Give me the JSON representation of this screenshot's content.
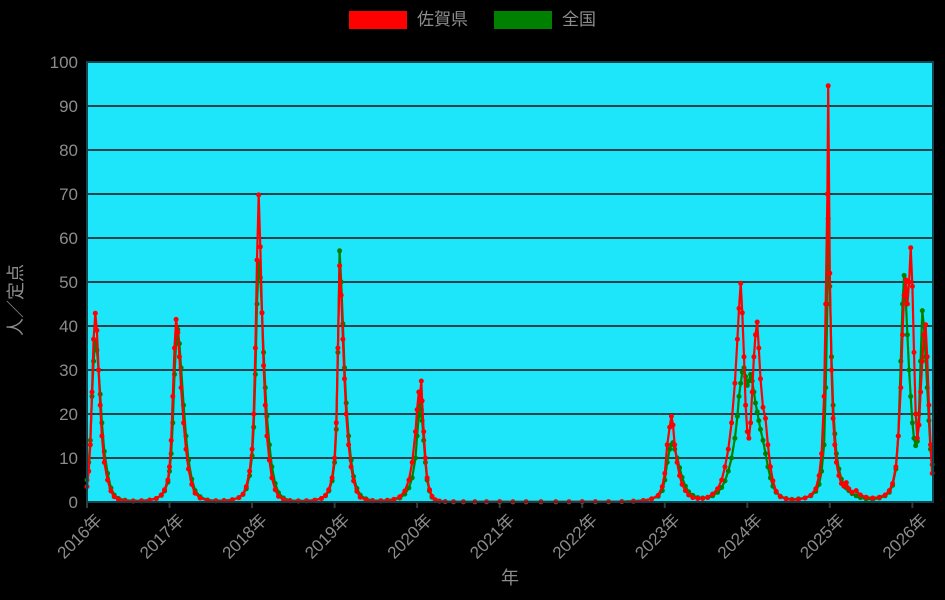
{
  "figure": {
    "background": "#000000",
    "plot_background": "#1ee6fa",
    "grid_color": "#11444c",
    "text_color": "#8c8c8c"
  },
  "legend": {
    "items": [
      {
        "label": "佐賀県",
        "color": "#ff0000"
      },
      {
        "label": "全国",
        "color": "#008000"
      }
    ]
  },
  "chart_data": {
    "type": "line",
    "title": "",
    "xlabel": "年",
    "ylabel": "人／定点",
    "xlim": [
      2016,
      2026.25
    ],
    "ylim": [
      0,
      100
    ],
    "grid": true,
    "legend_position": "top-center",
    "marker": "circle",
    "y_ticks": [
      0,
      10,
      20,
      30,
      40,
      50,
      60,
      70,
      80,
      90,
      100
    ],
    "x_ticks": [
      2016,
      2017,
      2018,
      2019,
      2020,
      2021,
      2022,
      2023,
      2024,
      2025,
      2026
    ],
    "x_tick_labels": [
      "2016年",
      "2017年",
      "2018年",
      "2019年",
      "2020年",
      "2021年",
      "2022年",
      "2023年",
      "2024年",
      "2025年",
      "2026年"
    ],
    "x": [
      2016.0,
      2016.02,
      2016.04,
      2016.06,
      2016.08,
      2016.1,
      2016.12,
      2016.14,
      2016.16,
      2016.18,
      2016.21,
      2016.25,
      2016.29,
      2016.33,
      2016.38,
      2016.46,
      2016.56,
      2016.66,
      2016.76,
      2016.84,
      2016.9,
      2016.94,
      2016.98,
      2017.0,
      2017.02,
      2017.04,
      2017.06,
      2017.08,
      2017.1,
      2017.12,
      2017.14,
      2017.17,
      2017.2,
      2017.23,
      2017.27,
      2017.31,
      2017.37,
      2017.46,
      2017.56,
      2017.66,
      2017.76,
      2017.84,
      2017.89,
      2017.93,
      2017.97,
      2018.0,
      2018.02,
      2018.04,
      2018.06,
      2018.08,
      2018.1,
      2018.12,
      2018.14,
      2018.16,
      2018.18,
      2018.21,
      2018.24,
      2018.28,
      2018.32,
      2018.38,
      2018.46,
      2018.56,
      2018.66,
      2018.76,
      2018.84,
      2018.89,
      2018.93,
      2018.97,
      2019.0,
      2019.02,
      2019.04,
      2019.06,
      2019.08,
      2019.1,
      2019.12,
      2019.14,
      2019.17,
      2019.2,
      2019.23,
      2019.27,
      2019.31,
      2019.38,
      2019.46,
      2019.56,
      2019.64,
      2019.72,
      2019.79,
      2019.85,
      2019.9,
      2019.94,
      2019.98,
      2020.0,
      2020.02,
      2020.03,
      2020.05,
      2020.06,
      2020.08,
      2020.1,
      2020.12,
      2020.15,
      2020.18,
      2020.22,
      2020.27,
      2020.34,
      2020.44,
      2020.56,
      2020.7,
      2020.84,
      2021.0,
      2021.16,
      2021.32,
      2021.5,
      2021.68,
      2021.84,
      2022.0,
      2022.16,
      2022.32,
      2022.48,
      2022.62,
      2022.74,
      2022.84,
      2022.92,
      2022.97,
      2023.0,
      2023.03,
      2023.06,
      2023.08,
      2023.1,
      2023.12,
      2023.15,
      2023.18,
      2023.21,
      2023.25,
      2023.29,
      2023.34,
      2023.4,
      2023.46,
      2023.52,
      2023.58,
      2023.64,
      2023.69,
      2023.73,
      2023.77,
      2023.81,
      2023.85,
      2023.88,
      2023.9,
      2023.92,
      2023.94,
      2023.96,
      2023.98,
      2024.0,
      2024.02,
      2024.04,
      2024.06,
      2024.08,
      2024.1,
      2024.12,
      2024.14,
      2024.16,
      2024.19,
      2024.22,
      2024.25,
      2024.28,
      2024.31,
      2024.35,
      2024.4,
      2024.47,
      2024.54,
      2024.62,
      2024.7,
      2024.77,
      2024.83,
      2024.87,
      2024.9,
      2024.93,
      2024.95,
      2024.97,
      2024.98,
      2025.0,
      2025.02,
      2025.04,
      2025.06,
      2025.08,
      2025.11,
      2025.14,
      2025.17,
      2025.2,
      2025.23,
      2025.27,
      2025.32,
      2025.37,
      2025.44,
      2025.52,
      2025.6,
      2025.67,
      2025.72,
      2025.76,
      2025.8,
      2025.83,
      2025.86,
      2025.88,
      2025.9,
      2025.92,
      2025.94,
      2025.96,
      2025.98,
      2026.0,
      2026.02,
      2026.04,
      2026.06,
      2026.08,
      2026.1,
      2026.12,
      2026.14,
      2026.16,
      2026.18,
      2026.2,
      2026.22,
      2026.24
    ],
    "series": [
      {
        "name": "佐賀県",
        "color": "#ff0000",
        "values": [
          3.5,
          7,
          13,
          25,
          37,
          42.9,
          39,
          30,
          22,
          15,
          9,
          5,
          2.5,
          1.2,
          0.6,
          0.3,
          0.2,
          0.25,
          0.4,
          0.8,
          1.6,
          2.8,
          5,
          8,
          14,
          24,
          35,
          41.5,
          38.5,
          33,
          26,
          18,
          12,
          7.5,
          4,
          2,
          0.9,
          0.35,
          0.25,
          0.3,
          0.5,
          1,
          1.8,
          3.5,
          7,
          12,
          20,
          35,
          55,
          69.8,
          58,
          43,
          31,
          22,
          15,
          9.5,
          5.5,
          2.8,
          1.3,
          0.6,
          0.25,
          0.2,
          0.25,
          0.4,
          0.8,
          1.5,
          2.8,
          5.5,
          10,
          18,
          35,
          53.7,
          47,
          37,
          28,
          20,
          13,
          8,
          4.8,
          2.4,
          1.1,
          0.5,
          0.25,
          0.25,
          0.35,
          0.6,
          1.2,
          2.5,
          5,
          9,
          16,
          21,
          25,
          23,
          27.5,
          23,
          16,
          10,
          5.5,
          2.8,
          1.3,
          0.5,
          0.2,
          0.1,
          0.06,
          0.05,
          0.05,
          0.06,
          0.08,
          0.05,
          0.04,
          0.04,
          0.05,
          0.06,
          0.1,
          0.08,
          0.06,
          0.08,
          0.15,
          0.3,
          0.7,
          1.5,
          3.5,
          6.5,
          13,
          17,
          19.5,
          17.5,
          13,
          9,
          6,
          4,
          2.6,
          1.6,
          1,
          0.8,
          0.8,
          1.1,
          1.8,
          3,
          5,
          8,
          12,
          18,
          27,
          37,
          44,
          49.7,
          43,
          33,
          22,
          16,
          14.5,
          18,
          25,
          33,
          38,
          40.9,
          35,
          28,
          21.5,
          19,
          13,
          8,
          4.8,
          2.4,
          1.2,
          0.7,
          0.5,
          0.6,
          0.9,
          1.5,
          3,
          6,
          11,
          24,
          45,
          70,
          94.6,
          52,
          30,
          19,
          13,
          9,
          6,
          4.2,
          3.6,
          4.4,
          3,
          2.2,
          2.6,
          1.6,
          1.1,
          0.9,
          1.1,
          1.6,
          2.6,
          4.2,
          8,
          15,
          26,
          38,
          47,
          50.5,
          45,
          50,
          57.8,
          49,
          34,
          20,
          14.5,
          17.5,
          25,
          32,
          38,
          40.3,
          33,
          22,
          13,
          6.5
        ]
      },
      {
        "name": "全国",
        "color": "#008000",
        "values": [
          5,
          9,
          14,
          24,
          32,
          36.5,
          34.5,
          30,
          24.5,
          18,
          11.5,
          6.5,
          3.2,
          1.6,
          0.8,
          0.4,
          0.25,
          0.3,
          0.45,
          0.8,
          1.5,
          2.5,
          4.5,
          7,
          11,
          18,
          29,
          36,
          39.2,
          36,
          30.5,
          22,
          15,
          9.5,
          5.2,
          2.6,
          1.2,
          0.45,
          0.3,
          0.35,
          0.5,
          1,
          1.7,
          3,
          6,
          10.5,
          17,
          29,
          45,
          54.3,
          51,
          43,
          34,
          26,
          19.5,
          13,
          8,
          4.2,
          2.1,
          0.9,
          0.35,
          0.25,
          0.3,
          0.4,
          0.8,
          1.4,
          2.5,
          4.8,
          9,
          16.5,
          34,
          57.1,
          50,
          40.5,
          30.5,
          22.5,
          15,
          9.5,
          5.8,
          3.1,
          1.6,
          0.7,
          0.35,
          0.3,
          0.4,
          0.6,
          0.9,
          1.8,
          3.2,
          5.5,
          10,
          15,
          19.5,
          22.5,
          21,
          18.5,
          14,
          9,
          5,
          2.5,
          1.1,
          0.45,
          0.2,
          0.08,
          0.05,
          0.04,
          0.04,
          0.05,
          0.05,
          0.04,
          0.04,
          0.04,
          0.04,
          0.05,
          0.06,
          0.05,
          0.06,
          0.1,
          0.2,
          0.35,
          0.7,
          1.3,
          2.6,
          5,
          9,
          12,
          13,
          13.5,
          12,
          10,
          7.8,
          5.6,
          3.6,
          2.3,
          1.5,
          1,
          0.9,
          1,
          1.4,
          2.2,
          3.3,
          4.8,
          7,
          10,
          14.5,
          19.5,
          24,
          27,
          29.5,
          30.5,
          28.5,
          26.5,
          27.5,
          29,
          27.5,
          25,
          22.5,
          20.5,
          18.5,
          16.5,
          14,
          11,
          8,
          5.5,
          3.6,
          2.2,
          1.3,
          0.8,
          0.6,
          0.7,
          0.9,
          1.4,
          2.4,
          4,
          7,
          13,
          26,
          45,
          64.4,
          49,
          33,
          22,
          15.5,
          11,
          7.5,
          5.2,
          4,
          3.2,
          2.6,
          1.9,
          1.4,
          1,
          0.7,
          0.6,
          0.9,
          1.4,
          2.2,
          3.8,
          7.5,
          15,
          32,
          45,
          51.5,
          46,
          38,
          30,
          24,
          18,
          14.5,
          12.8,
          13.8,
          20,
          32,
          43.5,
          40,
          33,
          26,
          18.5,
          12,
          8.5
        ]
      }
    ]
  }
}
